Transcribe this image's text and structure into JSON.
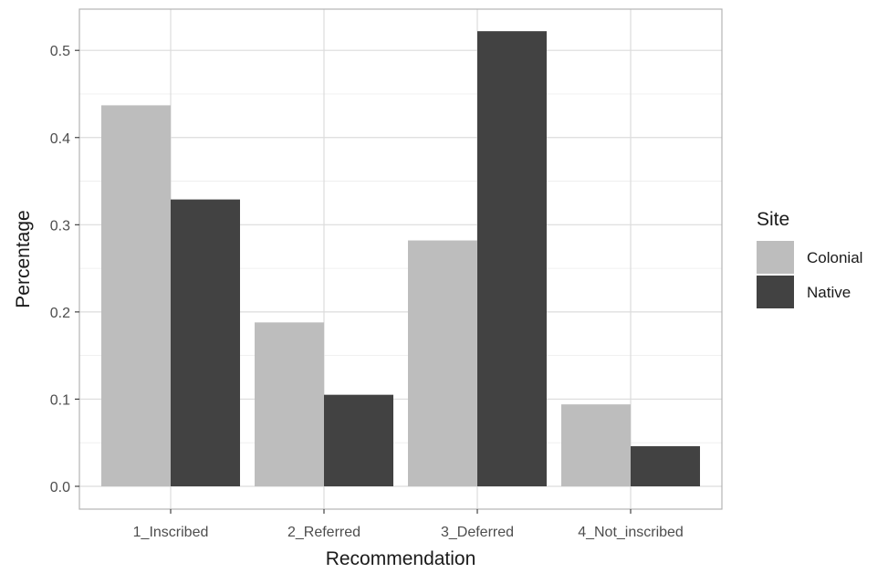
{
  "chart_data": {
    "type": "bar",
    "categories": [
      "1_Inscribed",
      "2_Referred",
      "3_Deferred",
      "4_Not_inscribed"
    ],
    "series": [
      {
        "name": "Colonial",
        "values": [
          0.437,
          0.188,
          0.282,
          0.094
        ],
        "color": "#bdbdbd"
      },
      {
        "name": "Native",
        "values": [
          0.329,
          0.105,
          0.522,
          0.046
        ],
        "color": "#424242"
      }
    ],
    "xlabel": "Recommendation",
    "ylabel": "Percentage",
    "ylim": [
      0,
      0.52
    ],
    "yticks": [
      0.0,
      0.1,
      0.2,
      0.3,
      0.4,
      0.5
    ],
    "ytick_labels": [
      "0.0",
      "0.1",
      "0.2",
      "0.3",
      "0.4",
      "0.5"
    ],
    "grid": true,
    "legend": {
      "title": "Site",
      "position": "right"
    }
  }
}
